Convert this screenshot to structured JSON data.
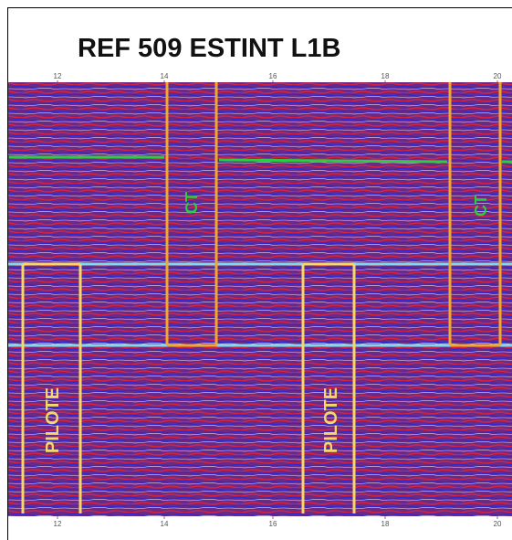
{
  "header": {
    "title": "REF 509 ESTINT L1B"
  },
  "top_axis": [
    "12",
    "14",
    "16",
    "18",
    "20"
  ],
  "bottom_axis": [
    "12",
    "14",
    "16",
    "18",
    "20"
  ],
  "annotations": [
    {
      "label": "CT"
    },
    {
      "label": "CT"
    },
    {
      "label": "PILOTE"
    },
    {
      "label": "PILOTE"
    }
  ]
}
